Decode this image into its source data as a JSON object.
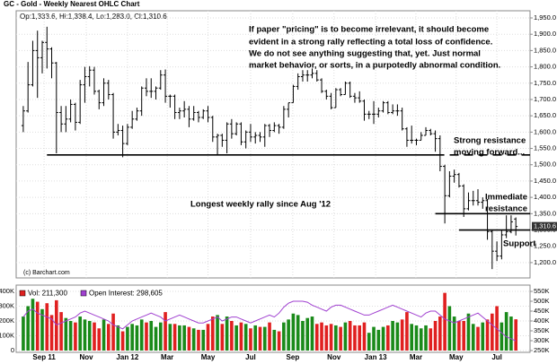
{
  "chart_data": [
    {
      "type": "ohlc",
      "title": "GC - Gold - Weekly Nearest OHLC Chart",
      "subtitle": "Op:1,333.6, Hi:1,338.4, Lo:1,283.0, Cl:1,310.6",
      "source": "(c) Barchart.com",
      "color": "#000000",
      "ylim": [
        1153,
        1972
      ],
      "xlim": [
        -1.5,
        107
      ],
      "grid": true,
      "yticks": [
        {
          "value": 1950,
          "label": "1,950.0"
        },
        {
          "value": 1900,
          "label": "1,900.0"
        },
        {
          "value": 1850,
          "label": "1,850.0"
        },
        {
          "value": 1800,
          "label": "1,800.0"
        },
        {
          "value": 1750,
          "label": "1,750.0"
        },
        {
          "value": 1700,
          "label": "1,700.0"
        },
        {
          "value": 1650,
          "label": "1,650.0"
        },
        {
          "value": 1600,
          "label": "1,600.0"
        },
        {
          "value": 1550,
          "label": "1,550.0"
        },
        {
          "value": 1500,
          "label": "1,500.0"
        },
        {
          "value": 1450,
          "label": "1,450.0"
        },
        {
          "value": 1400,
          "label": "1,400.0"
        },
        {
          "value": 1350,
          "label": "1,350.0"
        },
        {
          "value": 1300,
          "label": "1,300.0"
        },
        {
          "value": 1250,
          "label": "1,250.0"
        },
        {
          "value": 1200,
          "label": "1,200.0"
        }
      ],
      "xticks": [
        {
          "value": 4.4,
          "label": "Sep 11"
        },
        {
          "value": 13.3,
          "label": "Nov"
        },
        {
          "value": 22,
          "label": "Jan 12"
        },
        {
          "value": 30.4,
          "label": "Mar"
        },
        {
          "value": 39,
          "label": "May"
        },
        {
          "value": 48,
          "label": "Jul"
        },
        {
          "value": 56.9,
          "label": "Sep"
        },
        {
          "value": 65.6,
          "label": "Nov"
        },
        {
          "value": 74.4,
          "label": "Jan 13"
        },
        {
          "value": 82.9,
          "label": "Mar"
        },
        {
          "value": 91.4,
          "label": "May"
        },
        {
          "value": 100,
          "label": "Jul"
        }
      ],
      "last_price": {
        "value": 1310.6,
        "label": "1,310.6"
      },
      "annotations": [
        "If paper \"pricing\" is to become irrelevant, it should become",
        "evident in a strong rally reflecting a total loss of confidence.",
        "We do not see anything suggesting that, yet.  Just normal",
        "market behavior, or sorts, in a purpotedly abnormal condition.",
        "Strong resistance",
        "moving forward...",
        "Longest weekly rally since Aug '12",
        "Immediate",
        "resistance",
        "Support"
      ],
      "levels": [
        {
          "value": 1530,
          "x": [
            5,
            87
          ]
        },
        {
          "value": 1530,
          "x": [
            87,
            107
          ],
          "dashed": true
        },
        {
          "value": 1350,
          "x": [
            87,
            107
          ]
        },
        {
          "value": 1300,
          "x": [
            92,
            107
          ]
        }
      ],
      "ohlc": [
        [
          1620,
          1680,
          1600,
          1665
        ],
        [
          1665,
          1815,
          1660,
          1745
        ],
        [
          1745,
          1880,
          1740,
          1850
        ],
        [
          1850,
          1911,
          1705,
          1828
        ],
        [
          1828,
          1880,
          1780,
          1875
        ],
        [
          1875,
          1923,
          1795,
          1855
        ],
        [
          1855,
          1860,
          1765,
          1812
        ],
        [
          1812,
          1815,
          1535,
          1660
        ],
        [
          1660,
          1680,
          1600,
          1625
        ],
        [
          1625,
          1680,
          1600,
          1640
        ],
        [
          1640,
          1700,
          1630,
          1685
        ],
        [
          1685,
          1690,
          1605,
          1630
        ],
        [
          1630,
          1760,
          1625,
          1745
        ],
        [
          1745,
          1800,
          1690,
          1770
        ],
        [
          1770,
          1802,
          1740,
          1790
        ],
        [
          1790,
          1800,
          1715,
          1725
        ],
        [
          1725,
          1730,
          1670,
          1690
        ],
        [
          1690,
          1765,
          1680,
          1750
        ],
        [
          1750,
          1760,
          1700,
          1715
        ],
        [
          1715,
          1720,
          1580,
          1600
        ],
        [
          1600,
          1625,
          1590,
          1605
        ],
        [
          1605,
          1620,
          1523,
          1565
        ],
        [
          1565,
          1625,
          1560,
          1615
        ],
        [
          1615,
          1665,
          1610,
          1640
        ],
        [
          1640,
          1675,
          1635,
          1665
        ],
        [
          1665,
          1740,
          1650,
          1735
        ],
        [
          1735,
          1765,
          1710,
          1725
        ],
        [
          1725,
          1765,
          1705,
          1725
        ],
        [
          1725,
          1740,
          1700,
          1735
        ],
        [
          1735,
          1790,
          1730,
          1775
        ],
        [
          1775,
          1792,
          1690,
          1710
        ],
        [
          1710,
          1715,
          1675,
          1710
        ],
        [
          1710,
          1715,
          1640,
          1660
        ],
        [
          1660,
          1675,
          1640,
          1665
        ],
        [
          1665,
          1695,
          1645,
          1670
        ],
        [
          1670,
          1680,
          1615,
          1640
        ],
        [
          1640,
          1680,
          1635,
          1660
        ],
        [
          1660,
          1665,
          1630,
          1645
        ],
        [
          1645,
          1670,
          1640,
          1665
        ],
        [
          1665,
          1680,
          1630,
          1645
        ],
        [
          1645,
          1650,
          1570,
          1585
        ],
        [
          1585,
          1595,
          1530,
          1590
        ],
        [
          1590,
          1595,
          1555,
          1575
        ],
        [
          1575,
          1630,
          1535,
          1625
        ],
        [
          1625,
          1640,
          1580,
          1595
        ],
        [
          1595,
          1630,
          1590,
          1625
        ],
        [
          1625,
          1630,
          1560,
          1570
        ],
        [
          1570,
          1605,
          1550,
          1600
        ],
        [
          1600,
          1625,
          1570,
          1585
        ],
        [
          1585,
          1600,
          1565,
          1590
        ],
        [
          1590,
          1600,
          1570,
          1585
        ],
        [
          1585,
          1625,
          1555,
          1620
        ],
        [
          1620,
          1625,
          1585,
          1605
        ],
        [
          1605,
          1630,
          1600,
          1620
        ],
        [
          1620,
          1625,
          1595,
          1615
        ],
        [
          1615,
          1680,
          1610,
          1670
        ],
        [
          1670,
          1690,
          1645,
          1690
        ],
        [
          1690,
          1745,
          1690,
          1740
        ],
        [
          1740,
          1780,
          1730,
          1770
        ],
        [
          1770,
          1790,
          1755,
          1775
        ],
        [
          1775,
          1790,
          1755,
          1775
        ],
        [
          1775,
          1795,
          1765,
          1780
        ],
        [
          1780,
          1790,
          1755,
          1760
        ],
        [
          1760,
          1765,
          1720,
          1725
        ],
        [
          1725,
          1730,
          1700,
          1710
        ],
        [
          1710,
          1720,
          1670,
          1675
        ],
        [
          1675,
          1735,
          1675,
          1730
        ],
        [
          1730,
          1735,
          1710,
          1715
        ],
        [
          1715,
          1755,
          1715,
          1750
        ],
        [
          1750,
          1755,
          1705,
          1710
        ],
        [
          1710,
          1720,
          1690,
          1705
        ],
        [
          1705,
          1725,
          1690,
          1695
        ],
        [
          1695,
          1700,
          1635,
          1655
        ],
        [
          1655,
          1665,
          1640,
          1655
        ],
        [
          1655,
          1695,
          1625,
          1655
        ],
        [
          1655,
          1675,
          1645,
          1665
        ],
        [
          1665,
          1695,
          1660,
          1690
        ],
        [
          1690,
          1695,
          1655,
          1660
        ],
        [
          1660,
          1685,
          1655,
          1665
        ],
        [
          1665,
          1685,
          1650,
          1665
        ],
        [
          1665,
          1675,
          1605,
          1610
        ],
        [
          1610,
          1615,
          1555,
          1575
        ],
        [
          1575,
          1620,
          1565,
          1575
        ],
        [
          1575,
          1580,
          1560,
          1575
        ],
        [
          1575,
          1600,
          1575,
          1590
        ],
        [
          1590,
          1615,
          1590,
          1605
        ],
        [
          1605,
          1610,
          1590,
          1595
        ],
        [
          1595,
          1605,
          1540,
          1580
        ],
        [
          1580,
          1590,
          1480,
          1495
        ],
        [
          1495,
          1500,
          1320,
          1405
        ],
        [
          1405,
          1480,
          1400,
          1465
        ],
        [
          1465,
          1485,
          1445,
          1470
        ],
        [
          1470,
          1475,
          1430,
          1435
        ],
        [
          1435,
          1440,
          1340,
          1365
        ],
        [
          1365,
          1415,
          1360,
          1390
        ],
        [
          1390,
          1420,
          1375,
          1390
        ],
        [
          1390,
          1425,
          1375,
          1385
        ],
        [
          1385,
          1400,
          1365,
          1390
        ],
        [
          1390,
          1395,
          1270,
          1295
        ],
        [
          1295,
          1300,
          1180,
          1235
        ],
        [
          1235,
          1265,
          1205,
          1220
        ],
        [
          1220,
          1300,
          1210,
          1285
        ],
        [
          1285,
          1345,
          1275,
          1295
        ],
        [
          1295,
          1345,
          1290,
          1325
        ],
        [
          1333.6,
          1338.4,
          1283.0,
          1310.6
        ]
      ]
    },
    {
      "type": "volume",
      "xlim": [
        -1.5,
        107
      ],
      "ylim": [
        0,
        400000
      ],
      "yticks": [
        {
          "value": 400000,
          "label": "400K"
        },
        {
          "value": 300000,
          "label": "300K"
        },
        {
          "value": 200000,
          "label": "200K"
        },
        {
          "value": 100000,
          "label": "100K"
        },
        0
      ],
      "y2lim": [
        250000,
        550000
      ],
      "y2ticks": [
        {
          "value": 550000,
          "label": "550K"
        },
        {
          "value": 500000,
          "label": "500K"
        },
        {
          "value": 450000,
          "label": "450K"
        },
        {
          "value": 400000,
          "label": "400K"
        },
        {
          "value": 350000,
          "label": "350K"
        },
        {
          "value": 300000,
          "label": "300K"
        },
        {
          "value": 250000,
          "label": "250K"
        }
      ],
      "series": [
        {
          "name": "Vol: 211,300",
          "color": "#e02020",
          "up_color": "#1a8a1a",
          "down_color": "#e02020",
          "values": [
            230000,
            300000,
            350000,
            330000,
            280000,
            320000,
            240000,
            340000,
            260000,
            220000,
            200000,
            190000,
            230000,
            210000,
            200000,
            190000,
            150000,
            210000,
            180000,
            250000,
            170000,
            130000,
            160000,
            180000,
            170000,
            210000,
            190000,
            200000,
            160000,
            190000,
            260000,
            180000,
            180000,
            170000,
            170000,
            160000,
            150000,
            140000,
            140000,
            180000,
            230000,
            240000,
            180000,
            230000,
            200000,
            170000,
            190000,
            180000,
            150000,
            170000,
            160000,
            160000,
            190000,
            140000,
            130000,
            190000,
            210000,
            250000,
            240000,
            200000,
            220000,
            230000,
            180000,
            190000,
            170000,
            180000,
            170000,
            160000,
            190000,
            200000,
            170000,
            170000,
            190000,
            120000,
            160000,
            140000,
            160000,
            170000,
            200000,
            190000,
            210000,
            260000,
            180000,
            170000,
            150000,
            170000,
            150000,
            200000,
            230000,
            390000,
            300000,
            230000,
            200000,
            200000,
            250000,
            180000,
            160000,
            190000,
            210000,
            250000,
            300000,
            190000,
            260000,
            230000,
            211300
          ]
        },
        {
          "name": "Open Interest: 298,605",
          "color": "#a040d0",
          "axis": "y2",
          "values": [
            420000,
            450000,
            460000,
            440000,
            430000,
            420000,
            410000,
            380000,
            390000,
            400000,
            410000,
            420000,
            440000,
            450000,
            440000,
            430000,
            420000,
            410000,
            400000,
            380000,
            370000,
            360000,
            380000,
            400000,
            410000,
            420000,
            430000,
            440000,
            430000,
            420000,
            400000,
            410000,
            420000,
            430000,
            420000,
            410000,
            400000,
            390000,
            390000,
            400000,
            410000,
            420000,
            400000,
            410000,
            420000,
            420000,
            410000,
            400000,
            390000,
            400000,
            410000,
            420000,
            430000,
            420000,
            440000,
            470000,
            490000,
            500000,
            500000,
            500000,
            495000,
            480000,
            470000,
            460000,
            450000,
            470000,
            480000,
            480000,
            470000,
            460000,
            450000,
            440000,
            430000,
            430000,
            440000,
            450000,
            460000,
            470000,
            480000,
            470000,
            460000,
            450000,
            440000,
            430000,
            420000,
            440000,
            450000,
            450000,
            430000,
            410000,
            400000,
            390000,
            400000,
            410000,
            420000,
            430000,
            440000,
            420000,
            400000,
            380000,
            360000,
            340000,
            320000,
            310000,
            298605
          ]
        }
      ]
    }
  ]
}
